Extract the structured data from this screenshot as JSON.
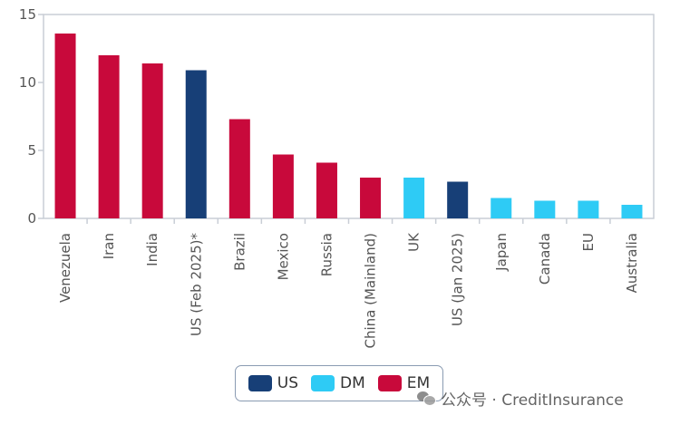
{
  "chart_data": {
    "type": "bar",
    "categories": [
      "Venezuela",
      "Iran",
      "India",
      "US (Feb 2025)*",
      "Brazil",
      "Mexico",
      "Russia",
      "China (Mainland)",
      "UK",
      "US (Jan 2025)",
      "Japan",
      "Canada",
      "EU",
      "Australia"
    ],
    "values": [
      13.6,
      12.0,
      11.4,
      10.9,
      7.3,
      4.7,
      4.1,
      3.0,
      3.0,
      2.7,
      1.5,
      1.3,
      1.3,
      1.0
    ],
    "groups": [
      "EM",
      "EM",
      "EM",
      "US",
      "EM",
      "EM",
      "EM",
      "EM",
      "DM",
      "US",
      "DM",
      "DM",
      "DM",
      "DM"
    ],
    "ylim": [
      0,
      15
    ],
    "yticks": [
      0,
      5,
      10,
      15
    ],
    "title": "",
    "xlabel": "",
    "ylabel": "",
    "grid": false,
    "legend_position": "bottom-center",
    "legend": [
      {
        "name": "US",
        "color": "#173f77"
      },
      {
        "name": "DM",
        "color": "#2ecbf5"
      },
      {
        "name": "EM",
        "color": "#c8093b"
      }
    ]
  },
  "watermark": "公众号 · CreditInsurance"
}
